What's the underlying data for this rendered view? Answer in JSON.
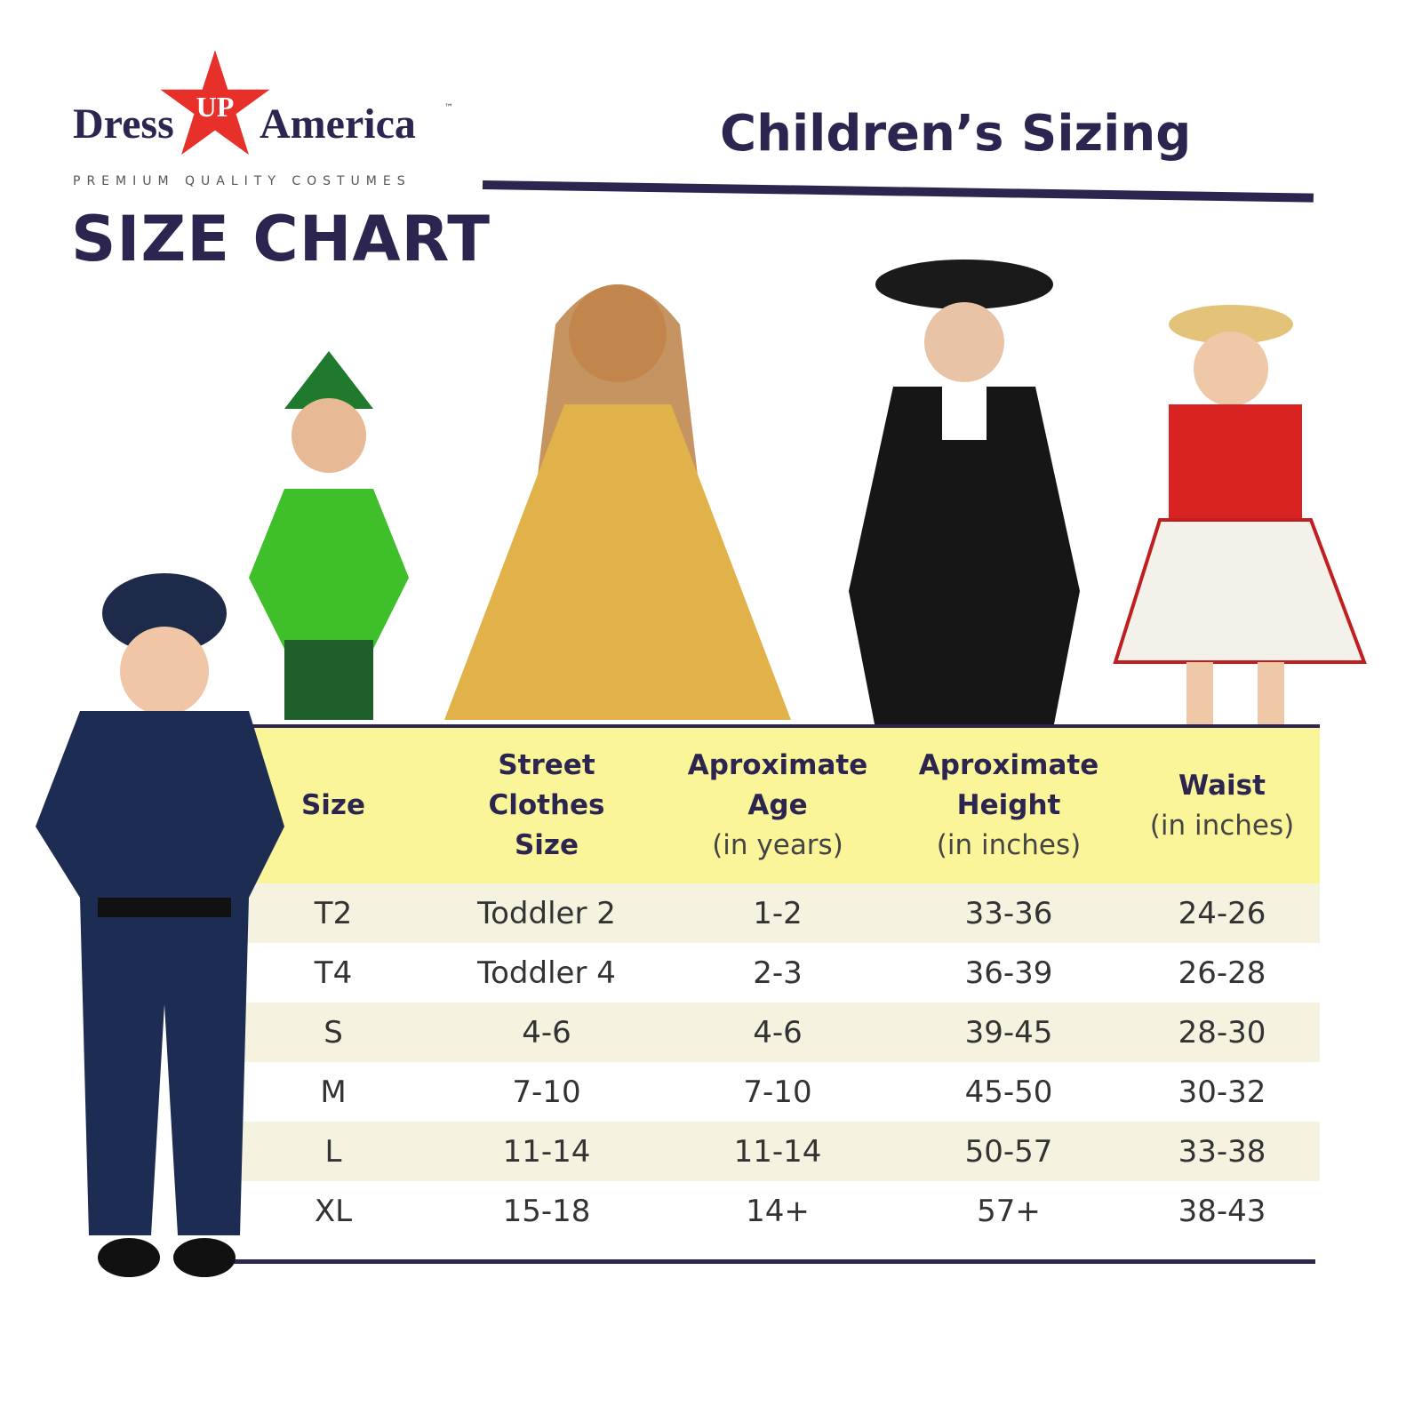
{
  "brand": {
    "left": "Dress",
    "star": "UP",
    "right": "America",
    "tm": "™",
    "tagline": "PREMIUM QUALITY COSTUMES",
    "star_color": "#e8302a"
  },
  "title": "SIZE CHART",
  "subtitle": "Children’s Sizing",
  "colors": {
    "navy": "#2b2550",
    "header_bg": "#fbf59a",
    "alt_row": "#f5f3df"
  },
  "table": {
    "headers": [
      {
        "main": "Size",
        "sub": ""
      },
      {
        "main": "Street Clothes Size",
        "sub": ""
      },
      {
        "main": "Aproximate Age",
        "sub": "(in years)"
      },
      {
        "main": "Aproximate Height",
        "sub": "(in inches)"
      },
      {
        "main": "Waist",
        "sub": "(in inches)"
      }
    ],
    "rows": [
      [
        "T2",
        "Toddler 2",
        "1-2",
        "33-36",
        "24-26"
      ],
      [
        "T4",
        "Toddler 4",
        "2-3",
        "36-39",
        "26-28"
      ],
      [
        "S",
        "4-6",
        "4-6",
        "39-45",
        "28-30"
      ],
      [
        "M",
        "7-10",
        "7-10",
        "45-50",
        "30-32"
      ],
      [
        "L",
        "11-14",
        "11-14",
        "50-57",
        "33-38"
      ],
      [
        "XL",
        "15-18",
        "14+",
        "57+",
        "38-43"
      ]
    ]
  },
  "images": [
    "police-costume-kid",
    "peter-pan-costume-kid",
    "princess-costume-kid",
    "colonial-costume-kid",
    "cowgirl-costume-kid"
  ]
}
